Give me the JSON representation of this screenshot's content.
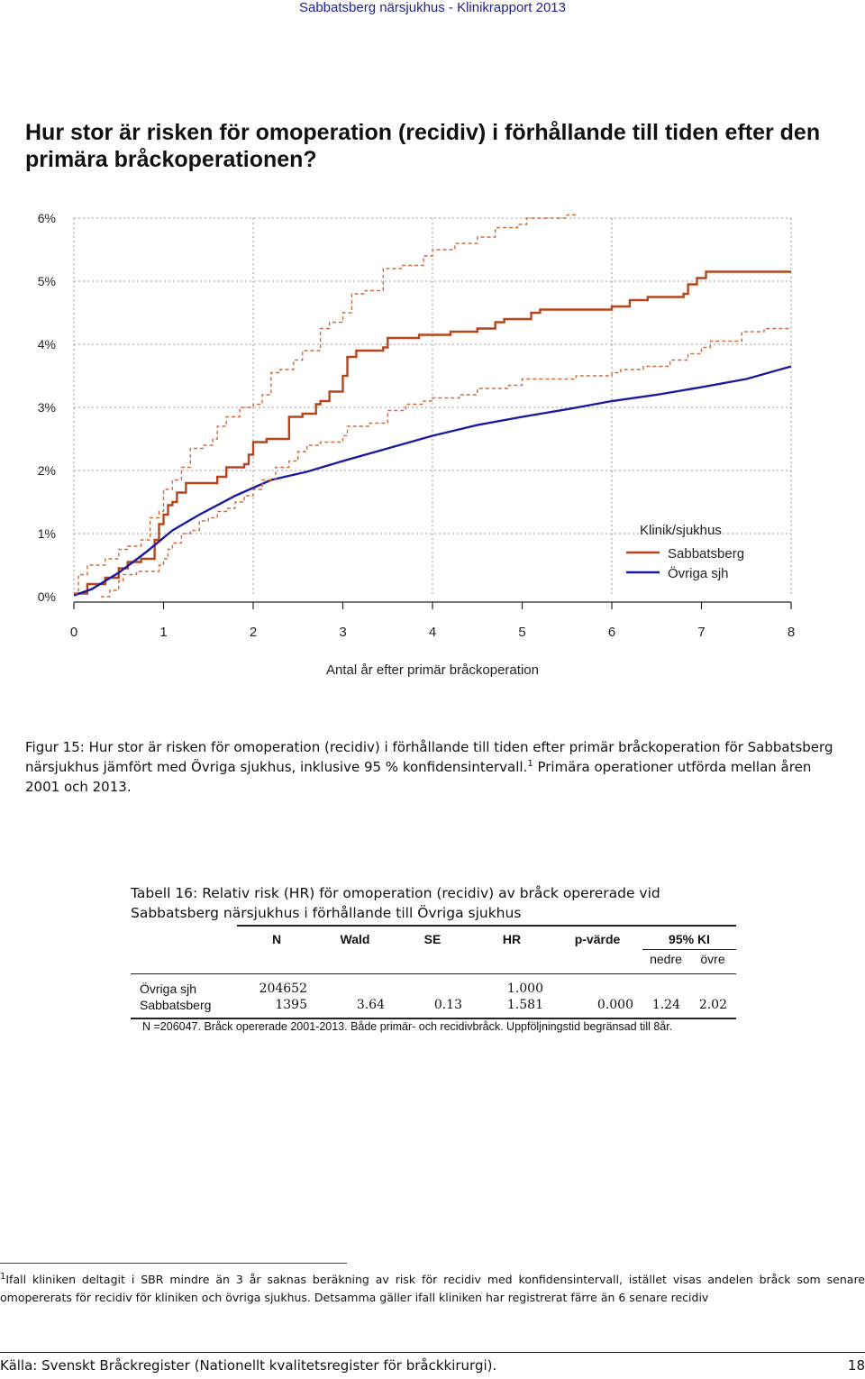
{
  "header": {
    "running_title": "Sabbatsberg närsjukhus - Klinikrapport 2013"
  },
  "title": "Hur stor är risken för omoperation (recidiv) i förhållande till tiden efter den primära bråckoperationen?",
  "chart_data": {
    "type": "line",
    "title": "",
    "xlabel": "Antal år efter primär bråckoperation",
    "ylabel": "",
    "xlim": [
      0,
      8
    ],
    "ylim": [
      0,
      6
    ],
    "x_ticks": [
      "0",
      "1",
      "2",
      "3",
      "4",
      "5",
      "6",
      "7",
      "8"
    ],
    "y_ticks": [
      "0%",
      "1%",
      "2%",
      "3%",
      "4%",
      "5%",
      "6%"
    ],
    "grid": true,
    "legend": {
      "title": "Klinik/sjukhus",
      "position": "bottom-right"
    },
    "series": [
      {
        "name": "Sabbatsberg",
        "color": "#b5461c",
        "style": "step",
        "points": [
          [
            0,
            0.05
          ],
          [
            0.15,
            0.2
          ],
          [
            0.35,
            0.3
          ],
          [
            0.5,
            0.45
          ],
          [
            0.6,
            0.55
          ],
          [
            0.75,
            0.6
          ],
          [
            0.9,
            0.9
          ],
          [
            0.95,
            1.15
          ],
          [
            1.0,
            1.3
          ],
          [
            1.05,
            1.45
          ],
          [
            1.1,
            1.5
          ],
          [
            1.15,
            1.65
          ],
          [
            1.25,
            1.8
          ],
          [
            1.5,
            1.8
          ],
          [
            1.6,
            1.9
          ],
          [
            1.7,
            2.05
          ],
          [
            1.9,
            2.1
          ],
          [
            1.95,
            2.25
          ],
          [
            2.0,
            2.45
          ],
          [
            2.15,
            2.5
          ],
          [
            2.4,
            2.85
          ],
          [
            2.55,
            2.9
          ],
          [
            2.7,
            3.05
          ],
          [
            2.75,
            3.1
          ],
          [
            2.85,
            3.25
          ],
          [
            3.0,
            3.5
          ],
          [
            3.05,
            3.8
          ],
          [
            3.15,
            3.9
          ],
          [
            3.45,
            3.95
          ],
          [
            3.5,
            4.1
          ],
          [
            3.85,
            4.15
          ],
          [
            4.2,
            4.2
          ],
          [
            4.5,
            4.25
          ],
          [
            4.7,
            4.35
          ],
          [
            4.8,
            4.4
          ],
          [
            5.1,
            4.5
          ],
          [
            5.2,
            4.55
          ],
          [
            6.0,
            4.6
          ],
          [
            6.2,
            4.7
          ],
          [
            6.4,
            4.75
          ],
          [
            6.8,
            4.8
          ],
          [
            6.85,
            4.95
          ],
          [
            6.95,
            5.05
          ],
          [
            7.05,
            5.15
          ],
          [
            8.0,
            5.15
          ]
        ]
      },
      {
        "name": "Övriga sjh",
        "color": "#1a1a9c",
        "style": "smooth",
        "points": [
          [
            0,
            0.02
          ],
          [
            0.2,
            0.12
          ],
          [
            0.5,
            0.38
          ],
          [
            0.8,
            0.7
          ],
          [
            1.1,
            1.05
          ],
          [
            1.4,
            1.3
          ],
          [
            1.8,
            1.6
          ],
          [
            2.2,
            1.85
          ],
          [
            2.6,
            1.98
          ],
          [
            3.0,
            2.15
          ],
          [
            3.5,
            2.35
          ],
          [
            4.0,
            2.55
          ],
          [
            4.5,
            2.72
          ],
          [
            5.0,
            2.85
          ],
          [
            5.5,
            2.97
          ],
          [
            6.0,
            3.1
          ],
          [
            6.5,
            3.2
          ],
          [
            7.0,
            3.32
          ],
          [
            7.5,
            3.45
          ],
          [
            8.0,
            3.65
          ]
        ]
      },
      {
        "name": "",
        "color": "#d26a3c",
        "style": "dashed-step",
        "points": [
          [
            0,
            0.05
          ],
          [
            0.05,
            0.35
          ],
          [
            0.15,
            0.5
          ],
          [
            0.35,
            0.6
          ],
          [
            0.5,
            0.75
          ],
          [
            0.6,
            0.8
          ],
          [
            0.75,
            0.9
          ],
          [
            0.85,
            1.25
          ],
          [
            0.95,
            1.35
          ],
          [
            1.0,
            1.7
          ],
          [
            1.1,
            1.85
          ],
          [
            1.2,
            2.05
          ],
          [
            1.3,
            2.35
          ],
          [
            1.45,
            2.4
          ],
          [
            1.55,
            2.5
          ],
          [
            1.6,
            2.7
          ],
          [
            1.7,
            2.85
          ],
          [
            1.85,
            3.0
          ],
          [
            2.0,
            3.05
          ],
          [
            2.1,
            3.2
          ],
          [
            2.2,
            3.55
          ],
          [
            2.3,
            3.6
          ],
          [
            2.45,
            3.75
          ],
          [
            2.55,
            3.9
          ],
          [
            2.75,
            4.25
          ],
          [
            2.85,
            4.35
          ],
          [
            3.0,
            4.5
          ],
          [
            3.1,
            4.8
          ],
          [
            3.25,
            4.85
          ],
          [
            3.45,
            5.2
          ],
          [
            3.65,
            5.25
          ],
          [
            3.9,
            5.4
          ],
          [
            4.0,
            5.5
          ],
          [
            4.25,
            5.6
          ],
          [
            4.5,
            5.7
          ],
          [
            4.7,
            5.85
          ],
          [
            4.95,
            5.9
          ],
          [
            5.05,
            6.0
          ],
          [
            5.5,
            6.05
          ],
          [
            5.6,
            6.05
          ]
        ]
      },
      {
        "name": "",
        "color": "#d26a3c",
        "style": "dashed-step",
        "points": [
          [
            0.3,
            0.0
          ],
          [
            0.4,
            0.1
          ],
          [
            0.5,
            0.25
          ],
          [
            0.55,
            0.35
          ],
          [
            0.7,
            0.4
          ],
          [
            0.95,
            0.5
          ],
          [
            1.0,
            0.6
          ],
          [
            1.05,
            0.75
          ],
          [
            1.1,
            0.85
          ],
          [
            1.2,
            1.0
          ],
          [
            1.3,
            1.05
          ],
          [
            1.4,
            1.2
          ],
          [
            1.5,
            1.25
          ],
          [
            1.6,
            1.35
          ],
          [
            1.7,
            1.4
          ],
          [
            1.8,
            1.5
          ],
          [
            1.9,
            1.6
          ],
          [
            2.0,
            1.7
          ],
          [
            2.1,
            1.85
          ],
          [
            2.25,
            2.05
          ],
          [
            2.4,
            2.15
          ],
          [
            2.5,
            2.3
          ],
          [
            2.6,
            2.4
          ],
          [
            2.75,
            2.45
          ],
          [
            3.0,
            2.55
          ],
          [
            3.05,
            2.7
          ],
          [
            3.3,
            2.75
          ],
          [
            3.5,
            2.95
          ],
          [
            3.7,
            3.05
          ],
          [
            3.9,
            3.1
          ],
          [
            4.0,
            3.15
          ],
          [
            4.3,
            3.2
          ],
          [
            4.5,
            3.3
          ],
          [
            4.85,
            3.35
          ],
          [
            5.0,
            3.45
          ],
          [
            5.6,
            3.5
          ],
          [
            6.0,
            3.55
          ],
          [
            6.1,
            3.6
          ],
          [
            6.35,
            3.65
          ],
          [
            6.65,
            3.75
          ],
          [
            6.85,
            3.85
          ],
          [
            7.0,
            3.95
          ],
          [
            7.1,
            4.05
          ],
          [
            7.45,
            4.2
          ],
          [
            7.7,
            4.25
          ],
          [
            8.0,
            4.25
          ]
        ]
      }
    ]
  },
  "figure_caption": {
    "before_sup": "Figur 15: Hur stor är risken för omoperation (recidiv) i förhållande till tiden efter primär bråckoperation för Sabbatsberg närsjukhus jämfört med Övriga sjukhus, inklusive 95 % konfidensintervall.",
    "sup": "1",
    "after_sup": " Primära operationer utförda mellan åren 2001 och 2013."
  },
  "table": {
    "caption": "Tabell 16: Relativ risk (HR) för omoperation (recidiv) av bråck opererade vid Sabbatsberg närsjukhus i förhållande till Övriga sjukhus",
    "headers": {
      "n": "N",
      "wald": "Wald",
      "se": "SE",
      "hr": "HR",
      "p": "p-värde",
      "ki": "95% KI",
      "lower": "nedre",
      "upper": "övre"
    },
    "rows": [
      {
        "label": "Övriga sjh",
        "n": "204652",
        "wald": "",
        "se": "",
        "hr": "1.000",
        "p": "",
        "lower": "",
        "upper": ""
      },
      {
        "label": "Sabbatsberg",
        "n": "1395",
        "wald": "3.64",
        "se": "0.13",
        "hr": "1.581",
        "p": "0.000",
        "lower": "1.24",
        "upper": "2.02"
      }
    ],
    "note": "N =206047. Bråck opererade 2001-2013. Både primär- och recidivbråck. Uppföljningstid begränsad till 8år."
  },
  "footnote": {
    "mark": "1",
    "text": "Ifall kliniken deltagit i SBR mindre än 3 år saknas beräkning av risk för recidiv med konfidensintervall, istället visas andelen bråck som senare omopererats för recidiv för kliniken och övriga sjukhus. Detsamma gäller ifall kliniken har registrerat färre än 6 senare recidiv"
  },
  "footer": {
    "source": "Källa: Svenskt Bråckregister (Nationellt kvalitetsregister för bråckkirurgi).",
    "page": "18"
  }
}
